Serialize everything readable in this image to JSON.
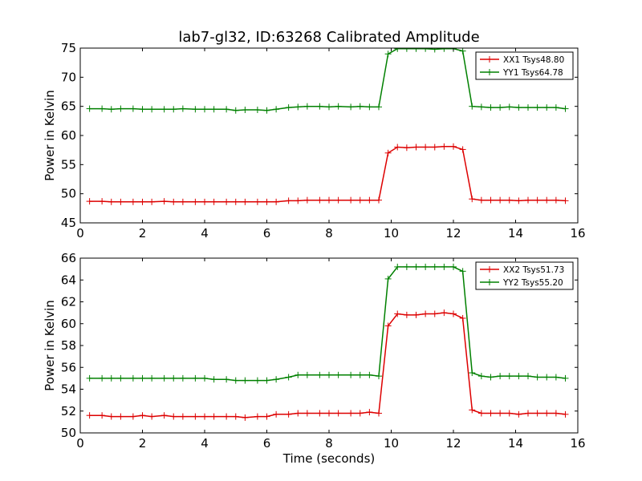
{
  "chart_data": [
    {
      "type": "line",
      "title": "lab7-gl32, ID:63268 Calibrated Amplitude",
      "xlabel": "",
      "ylabel": "Power in Kelvin",
      "xlim": [
        0,
        16
      ],
      "ylim": [
        45,
        75
      ],
      "xticks": [
        0,
        2,
        4,
        6,
        8,
        10,
        12,
        14,
        16
      ],
      "yticks": [
        45,
        50,
        55,
        60,
        65,
        70,
        75
      ],
      "grid": false,
      "legend_position": "top-right",
      "x": [
        0.3,
        0.7,
        1.0,
        1.3,
        1.7,
        2.0,
        2.3,
        2.7,
        3.0,
        3.3,
        3.7,
        4.0,
        4.3,
        4.7,
        5.0,
        5.3,
        5.7,
        6.0,
        6.3,
        6.7,
        7.0,
        7.3,
        7.7,
        8.0,
        8.3,
        8.7,
        9.0,
        9.3,
        9.6,
        9.9,
        10.2,
        10.5,
        10.8,
        11.1,
        11.4,
        11.7,
        12.0,
        12.3,
        12.6,
        12.9,
        13.2,
        13.5,
        13.8,
        14.1,
        14.4,
        14.7,
        15.0,
        15.3,
        15.6
      ],
      "series": [
        {
          "name": "XX1 Tsys48.80",
          "color": "#dd0000",
          "values": [
            48.7,
            48.7,
            48.6,
            48.6,
            48.6,
            48.6,
            48.6,
            48.7,
            48.6,
            48.6,
            48.6,
            48.6,
            48.6,
            48.6,
            48.6,
            48.6,
            48.6,
            48.6,
            48.6,
            48.8,
            48.8,
            48.9,
            48.9,
            48.9,
            48.9,
            48.9,
            48.9,
            48.9,
            48.9,
            57.0,
            58.0,
            57.9,
            58.0,
            58.0,
            58.0,
            58.1,
            58.1,
            57.6,
            49.1,
            48.9,
            48.9,
            48.9,
            48.9,
            48.8,
            48.9,
            48.9,
            48.9,
            48.9,
            48.8
          ]
        },
        {
          "name": "YY1 Tsys64.78",
          "color": "#008000",
          "values": [
            64.6,
            64.6,
            64.5,
            64.6,
            64.6,
            64.5,
            64.5,
            64.5,
            64.5,
            64.6,
            64.5,
            64.5,
            64.5,
            64.5,
            64.3,
            64.4,
            64.4,
            64.3,
            64.5,
            64.8,
            64.9,
            65.0,
            65.0,
            64.9,
            65.0,
            64.9,
            65.0,
            64.9,
            64.9,
            74.0,
            74.9,
            74.9,
            74.9,
            74.9,
            74.8,
            74.9,
            74.9,
            74.5,
            65.0,
            64.9,
            64.8,
            64.8,
            64.9,
            64.8,
            64.8,
            64.8,
            64.8,
            64.8,
            64.6
          ]
        }
      ]
    },
    {
      "type": "line",
      "title": "",
      "xlabel": "Time (seconds)",
      "ylabel": "Power in Kelvin",
      "xlim": [
        0,
        16
      ],
      "ylim": [
        50,
        66
      ],
      "xticks": [
        0,
        2,
        4,
        6,
        8,
        10,
        12,
        14,
        16
      ],
      "yticks": [
        50,
        52,
        54,
        56,
        58,
        60,
        62,
        64,
        66
      ],
      "grid": false,
      "legend_position": "top-right",
      "x": [
        0.3,
        0.7,
        1.0,
        1.3,
        1.7,
        2.0,
        2.3,
        2.7,
        3.0,
        3.3,
        3.7,
        4.0,
        4.3,
        4.7,
        5.0,
        5.3,
        5.7,
        6.0,
        6.3,
        6.7,
        7.0,
        7.3,
        7.7,
        8.0,
        8.3,
        8.7,
        9.0,
        9.3,
        9.6,
        9.9,
        10.2,
        10.5,
        10.8,
        11.1,
        11.4,
        11.7,
        12.0,
        12.3,
        12.6,
        12.9,
        13.2,
        13.5,
        13.8,
        14.1,
        14.4,
        14.7,
        15.0,
        15.3,
        15.6
      ],
      "series": [
        {
          "name": "XX2 Tsys51.73",
          "color": "#dd0000",
          "values": [
            51.6,
            51.6,
            51.5,
            51.5,
            51.5,
            51.6,
            51.5,
            51.6,
            51.5,
            51.5,
            51.5,
            51.5,
            51.5,
            51.5,
            51.5,
            51.4,
            51.5,
            51.5,
            51.7,
            51.7,
            51.8,
            51.8,
            51.8,
            51.8,
            51.8,
            51.8,
            51.8,
            51.9,
            51.8,
            59.8,
            60.9,
            60.8,
            60.8,
            60.9,
            60.9,
            61.0,
            60.9,
            60.5,
            52.1,
            51.8,
            51.8,
            51.8,
            51.8,
            51.7,
            51.8,
            51.8,
            51.8,
            51.8,
            51.7
          ]
        },
        {
          "name": "YY2 Tsys55.20",
          "color": "#008000",
          "values": [
            55.0,
            55.0,
            55.0,
            55.0,
            55.0,
            55.0,
            55.0,
            55.0,
            55.0,
            55.0,
            55.0,
            55.0,
            54.9,
            54.9,
            54.8,
            54.8,
            54.8,
            54.8,
            54.9,
            55.1,
            55.3,
            55.3,
            55.3,
            55.3,
            55.3,
            55.3,
            55.3,
            55.3,
            55.2,
            64.1,
            65.2,
            65.2,
            65.2,
            65.2,
            65.2,
            65.2,
            65.2,
            64.8,
            55.5,
            55.2,
            55.1,
            55.2,
            55.2,
            55.2,
            55.2,
            55.1,
            55.1,
            55.1,
            55.0
          ]
        }
      ]
    }
  ]
}
